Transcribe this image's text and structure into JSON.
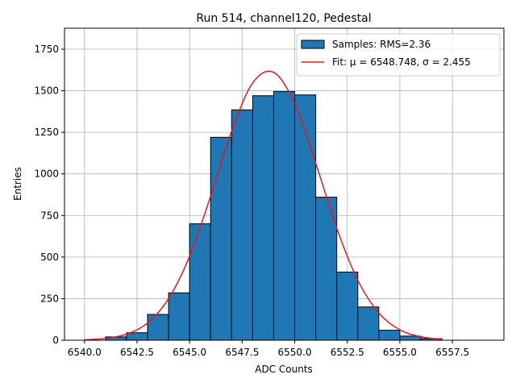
{
  "chart_data": {
    "type": "histogram",
    "title": "Run 514, channel120, Pedestal",
    "xlabel": "ADC Counts",
    "ylabel": "Entries",
    "bins": [
      6540,
      6541,
      6542,
      6543,
      6544,
      6545,
      6546,
      6547,
      6548,
      6549,
      6550,
      6551,
      6552,
      6553,
      6554,
      6555,
      6556,
      6557,
      6558,
      6559
    ],
    "counts": [
      0,
      20,
      45,
      155,
      285,
      700,
      1220,
      1385,
      1470,
      1495,
      1475,
      860,
      410,
      200,
      60,
      25,
      10,
      0,
      0
    ],
    "hist_name": "Samples: RMS=2.36",
    "hist_color": "#1f77b4",
    "edge_color": "#000000",
    "fit": {
      "name": "Fit: μ = 6548.748, σ = 2.455",
      "color": "#e41a1c",
      "x": [
        6540,
        6541,
        6542,
        6543,
        6544,
        6545,
        6546,
        6547,
        6548,
        6549,
        6550,
        6551,
        6552,
        6553,
        6554,
        6555,
        6556,
        6557
      ],
      "values": [
        2.8,
        11,
        37,
        104,
        250,
        505,
        866,
        1257,
        1547,
        1611,
        1422,
        1064,
        674,
        361,
        164,
        63,
        21,
        6
      ]
    },
    "xlim": [
      6539.05,
      6559.95
    ],
    "ylim": [
      0,
      1876
    ],
    "xticks": [
      {
        "value": 6540,
        "label": "6540.0"
      },
      6542.5,
      {
        "value": 6545,
        "label": "6545.0"
      },
      6547.5,
      {
        "value": 6550,
        "label": "6550.0"
      },
      6552.5,
      {
        "value": 6555,
        "label": "6555.0"
      },
      6557.5
    ],
    "yticks": [
      0,
      250,
      500,
      750,
      1000,
      1250,
      1500,
      1750
    ],
    "grid": true,
    "legend": "upper right"
  }
}
